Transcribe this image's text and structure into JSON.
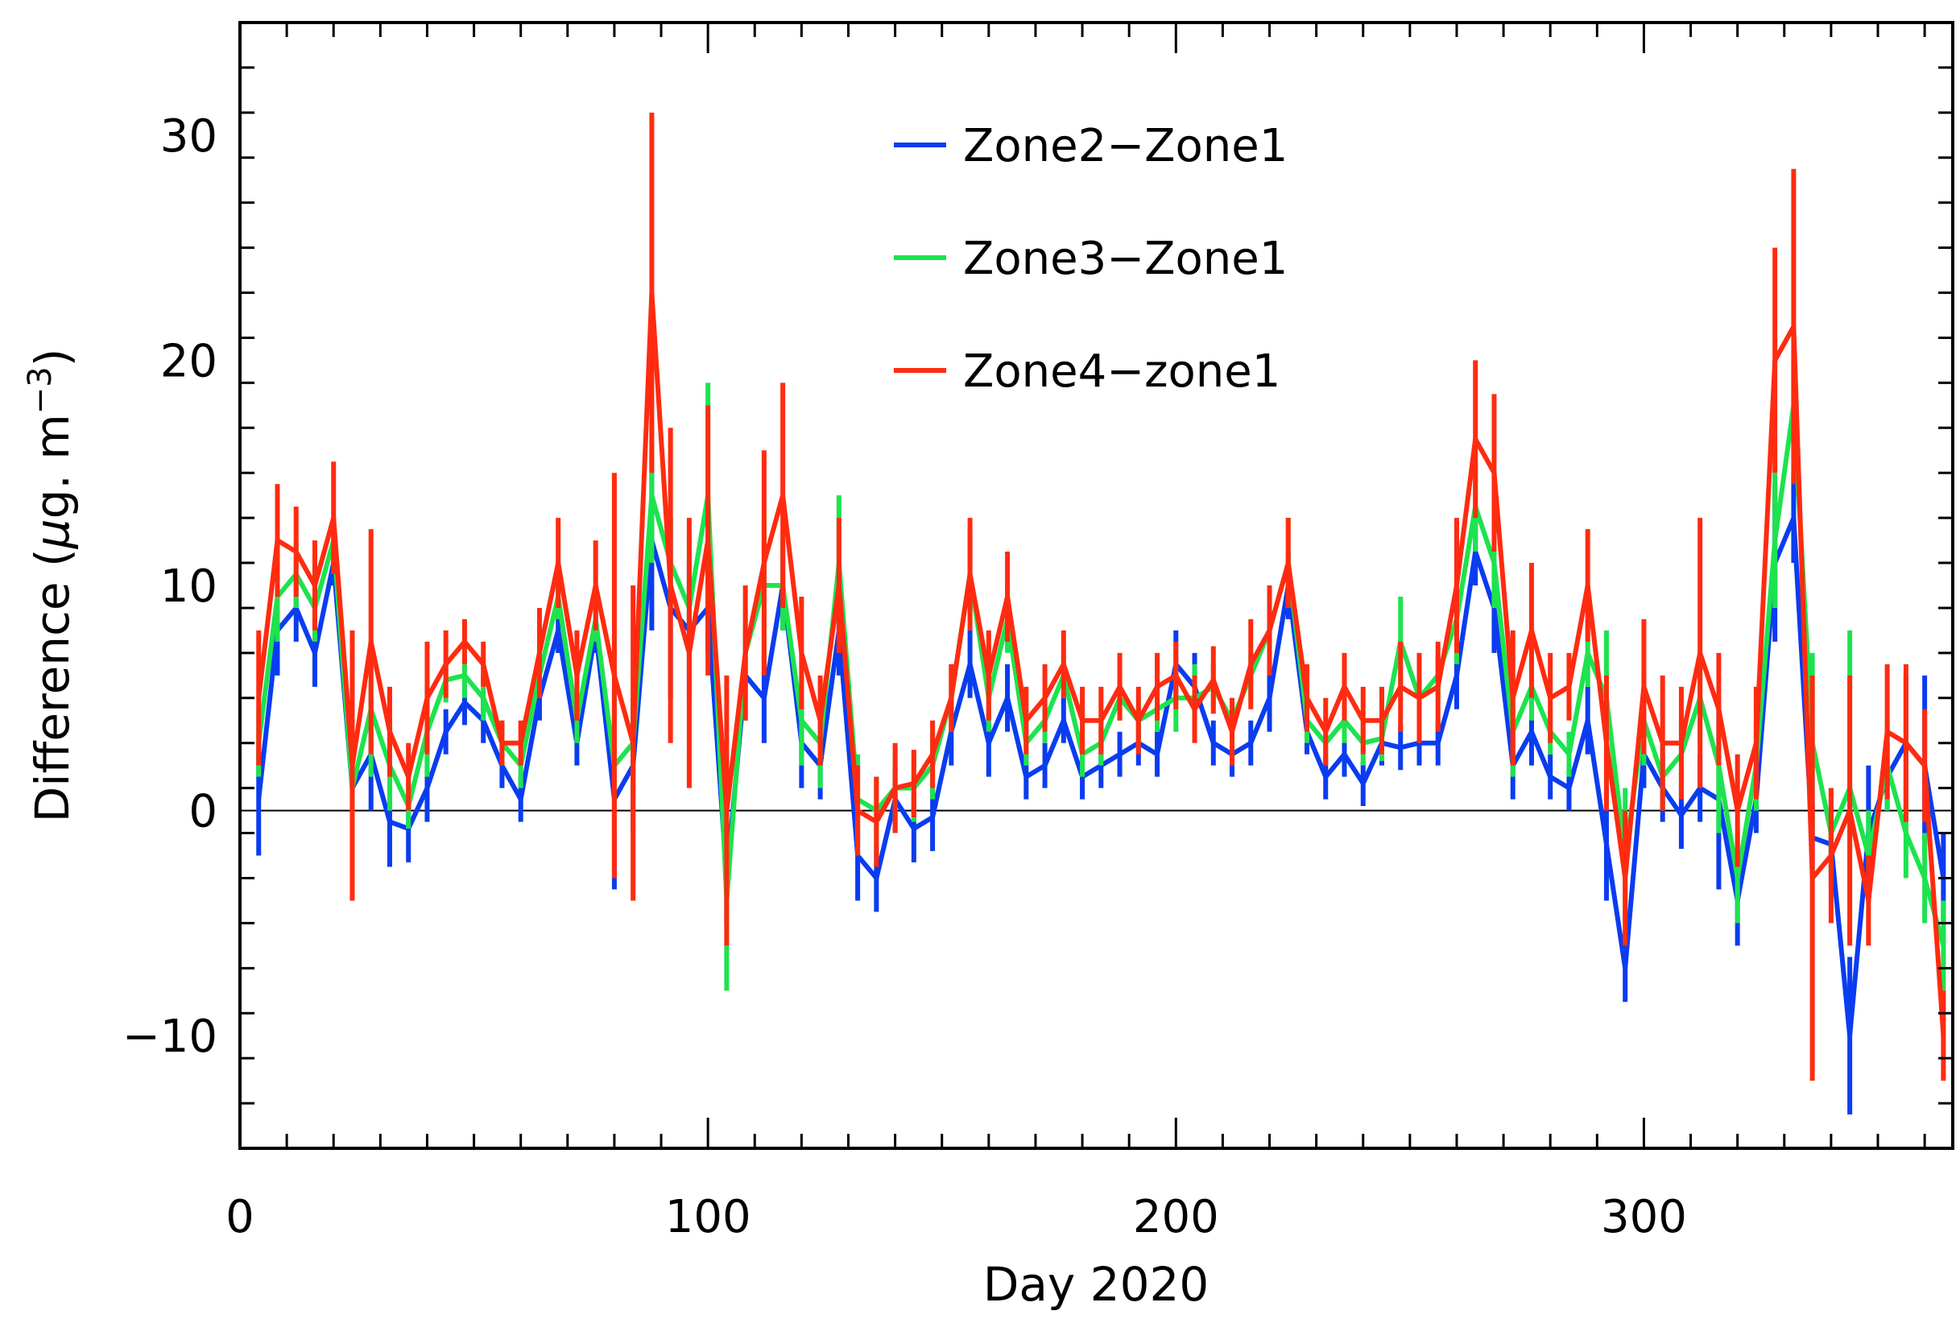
{
  "chart_data": {
    "type": "line",
    "title": "",
    "xlabel": "Day 2020",
    "ylabel_main": "Difference (",
    "ylabel_mu": "μ",
    "ylabel_mid": "g. m",
    "ylabel_sup": "−3",
    "ylabel_end": ")",
    "xlim": [
      0,
      366
    ],
    "ylim": [
      -15,
      35
    ],
    "xticks": [
      0,
      100,
      200,
      300
    ],
    "xtick_labels": [
      "0",
      "100",
      "200",
      "300"
    ],
    "yticks": [
      -10,
      0,
      10,
      20,
      30
    ],
    "ytick_labels": [
      "−10",
      "0",
      "10",
      "20",
      "30"
    ],
    "legend_position": "top-center",
    "x": [
      4,
      8,
      12,
      16,
      20,
      24,
      28,
      32,
      36,
      40,
      44,
      48,
      52,
      56,
      60,
      64,
      68,
      72,
      76,
      80,
      84,
      88,
      92,
      96,
      100,
      104,
      108,
      112,
      116,
      120,
      124,
      128,
      132,
      136,
      140,
      144,
      148,
      152,
      156,
      160,
      164,
      168,
      172,
      176,
      180,
      184,
      188,
      192,
      196,
      200,
      204,
      208,
      212,
      216,
      220,
      224,
      228,
      232,
      236,
      240,
      244,
      248,
      252,
      256,
      260,
      264,
      268,
      272,
      276,
      280,
      284,
      288,
      292,
      296,
      300,
      304,
      308,
      312,
      316,
      320,
      324,
      328,
      332,
      336,
      340,
      344,
      348,
      352,
      356,
      360,
      364
    ],
    "series": [
      {
        "name": "Zone2−Zone1",
        "color": "#0a3cf0",
        "values": [
          0.5,
          8,
          9,
          7,
          11,
          1,
          2.5,
          -0.5,
          -0.8,
          1,
          3.5,
          4.8,
          4,
          2,
          0.5,
          5,
          8,
          3,
          8,
          0.5,
          2,
          12,
          9,
          8,
          9,
          -3,
          6,
          5,
          10,
          3,
          2,
          8,
          -2,
          -3,
          0.5,
          -0.8,
          -0.3,
          3.5,
          6.5,
          3,
          5,
          1.5,
          2,
          4,
          1.5,
          2,
          2.5,
          3,
          2.5,
          6.5,
          5.5,
          3,
          2.5,
          3,
          5,
          10,
          3.5,
          1.5,
          2.5,
          1.2,
          3,
          2.8,
          3,
          3,
          6,
          11.5,
          9,
          2,
          3.5,
          1.5,
          1,
          4,
          -1.5,
          -7,
          2.5,
          1,
          -0.2,
          1,
          0.5,
          -4,
          0.5,
          11,
          13,
          -1.2,
          -1.5,
          -10,
          -1,
          1.5,
          3,
          2,
          -3
        ],
        "err": [
          2.5,
          2,
          1.5,
          1.5,
          1,
          1.5,
          2.5,
          2,
          1.5,
          1.5,
          1,
          1,
          1,
          1,
          1,
          1,
          1,
          1,
          1,
          4,
          3,
          4,
          4,
          3,
          2,
          2,
          2,
          2,
          2,
          2,
          1.5,
          2,
          2,
          1.5,
          1.5,
          1.5,
          1.5,
          1.5,
          1.5,
          1.5,
          1.5,
          1,
          1,
          1,
          1,
          1,
          1,
          1,
          1,
          1.5,
          1.5,
          1,
          1,
          1,
          1.5,
          1.5,
          1,
          1,
          1,
          1,
          1,
          1,
          1,
          1,
          1.5,
          1.5,
          2,
          1.5,
          1.5,
          1,
          1,
          1.5,
          2.5,
          1.5,
          1.5,
          1.5,
          1.5,
          1.5,
          4,
          2,
          1.5,
          3.5,
          2,
          1.5,
          2,
          3.5,
          3,
          1.5,
          3,
          4,
          2
        ]
      },
      {
        "name": "Zone3−Zone1",
        "color": "#1de34e",
        "values": [
          3,
          9.5,
          10.5,
          9,
          12,
          1,
          4.5,
          2,
          0.2,
          3.5,
          5.8,
          6,
          5,
          3,
          2,
          6,
          9.5,
          4,
          8.5,
          2,
          3,
          14,
          11,
          9,
          14,
          -4,
          7,
          10,
          10,
          4,
          3,
          11,
          0.5,
          0,
          1,
          1,
          2,
          5,
          10.5,
          5,
          8.5,
          3,
          4,
          6,
          2.5,
          3,
          5,
          4,
          4.5,
          5,
          5,
          5.5,
          4,
          6,
          8,
          11,
          4,
          3,
          4,
          3,
          3.2,
          7.5,
          5,
          6,
          8.5,
          13.5,
          11,
          3.5,
          5.5,
          3.5,
          2.5,
          7,
          5,
          -2,
          4,
          1.5,
          2.5,
          5,
          2,
          -3,
          2,
          12,
          18,
          3,
          -1,
          1,
          -2,
          2,
          -1,
          -3,
          -6
        ],
        "err": [
          1.5,
          2,
          1.5,
          1.5,
          1,
          2.5,
          3,
          2,
          1,
          2,
          1,
          1,
          1,
          1,
          1,
          1,
          1,
          1,
          1,
          3,
          2,
          3,
          2,
          3,
          5,
          4,
          2,
          3,
          2,
          2,
          2,
          3,
          2,
          1.5,
          1.5,
          1.5,
          1.5,
          1.5,
          2,
          1.5,
          1.5,
          1,
          1,
          1,
          1,
          1,
          1,
          1,
          1,
          1.5,
          1.5,
          1,
          1,
          1,
          1.5,
          2,
          1,
          1,
          1,
          1,
          1,
          2,
          1,
          1,
          2,
          2,
          2,
          2,
          1.5,
          1,
          1,
          1.5,
          3,
          3,
          2,
          1.5,
          1.5,
          2,
          3,
          2,
          2,
          3,
          2,
          4,
          2,
          7,
          2,
          2,
          2,
          2,
          2
        ]
      },
      {
        "name": "Zone4−zone1",
        "color": "#ff2b10",
        "values": [
          5,
          12,
          11.5,
          10,
          13,
          2,
          7.5,
          3.5,
          1.5,
          5,
          6.5,
          7.5,
          6.5,
          3,
          3,
          7,
          11,
          6,
          10,
          6,
          3,
          23,
          10,
          7,
          12,
          0,
          7,
          11,
          14,
          7,
          4,
          10,
          0,
          -0.5,
          1,
          1.2,
          2.5,
          5,
          10.5,
          6,
          9.5,
          4,
          5,
          6.5,
          4,
          4,
          5.5,
          4,
          5.5,
          6,
          4.5,
          5.8,
          3.5,
          6.5,
          8,
          11,
          5,
          3.5,
          5.5,
          4,
          4,
          5.5,
          5,
          5.5,
          10,
          16.5,
          15,
          5,
          8,
          5,
          5.5,
          10,
          3,
          -3,
          5.5,
          3,
          3,
          7,
          4.5,
          0,
          3,
          20,
          21.5,
          -3,
          -2,
          0,
          -4,
          3.5,
          3,
          2,
          -10
        ],
        "err": [
          3,
          2.5,
          2,
          2,
          2.5,
          6,
          5,
          2,
          1.5,
          2.5,
          1.5,
          1,
          1,
          1,
          1,
          2,
          2,
          2,
          2,
          9,
          7,
          8,
          7,
          6,
          6,
          6,
          3,
          5,
          5,
          2.5,
          2,
          3,
          2,
          2,
          2,
          1.5,
          1.5,
          1.5,
          2.5,
          2,
          2,
          1.5,
          1.5,
          1.5,
          1.5,
          1.5,
          1.5,
          1.5,
          1.5,
          1.5,
          1.5,
          1.5,
          1.5,
          2,
          2,
          2,
          1.5,
          1.5,
          1.5,
          1.5,
          1.5,
          2,
          2,
          2,
          3,
          3.5,
          3.5,
          3,
          3,
          2,
          1.5,
          2.5,
          3,
          3,
          3,
          3,
          2.5,
          6,
          2.5,
          2.5,
          2.5,
          5,
          7,
          9,
          3,
          6,
          2,
          3,
          3.5,
          2.5,
          2
        ]
      }
    ]
  }
}
